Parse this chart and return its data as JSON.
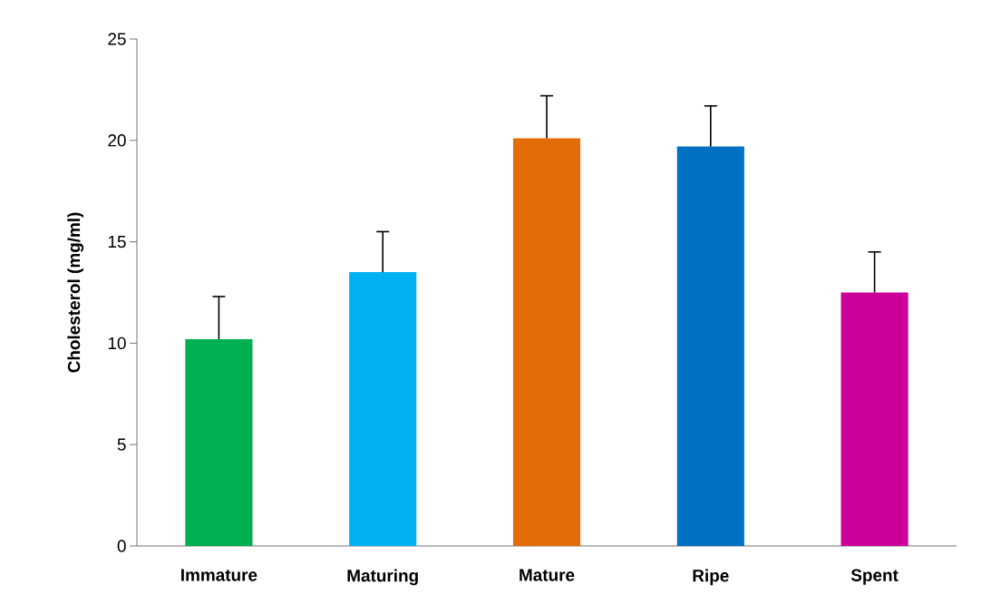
{
  "chart_data": {
    "type": "bar",
    "ylabel": "Cholesterol (mg/ml)",
    "categories": [
      "Immature",
      "Maturing",
      "Mature",
      "Ripe",
      "Spent"
    ],
    "values": [
      10.2,
      13.5,
      20.1,
      19.7,
      12.5
    ],
    "colors": [
      "#00b050",
      "#00b0f0",
      "#e36c09",
      "#0070c0",
      "#cc0099"
    ],
    "errors": [
      [
        10.2,
        12.3
      ],
      [
        13.5,
        15.5
      ],
      [
        20.1,
        22.2
      ],
      [
        19.7,
        21.7
      ],
      [
        12.5,
        14.5
      ]
    ],
    "ylim": [
      0,
      25
    ],
    "yticks": [
      0,
      5,
      10,
      15,
      20,
      25
    ]
  }
}
